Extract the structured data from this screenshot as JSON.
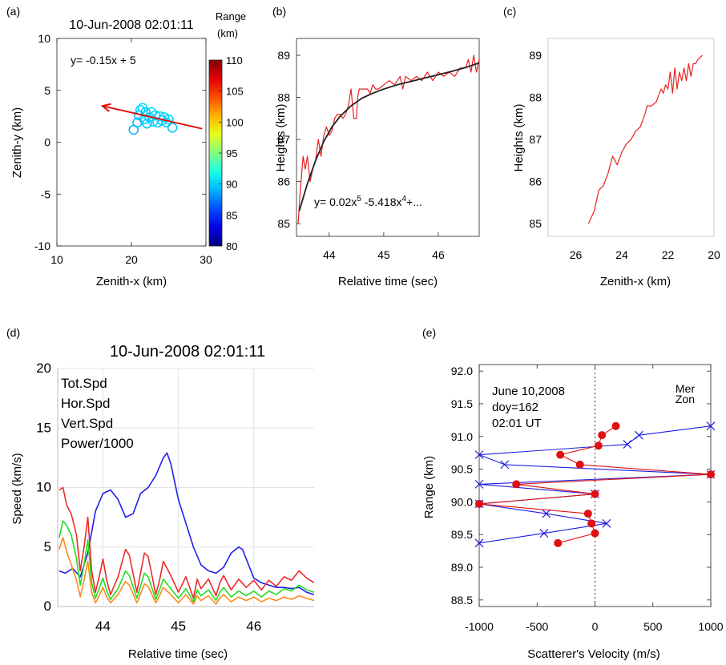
{
  "chart_data": [
    {
      "panel_label": "(a)",
      "type": "scatter",
      "title": "10-Jun-2008 02:01:11",
      "xlabel": "Zenith-x (km)",
      "ylabel": "Zenith-y (km)",
      "xlim": [
        10,
        30
      ],
      "ylim": [
        -10,
        10
      ],
      "xticks": [
        10,
        20,
        30
      ],
      "yticks": [
        -10,
        -5,
        0,
        5,
        10
      ],
      "annotation": "y= -0.15x +  5",
      "colorbar": {
        "label": "Range\n(km)",
        "min": 80,
        "max": 110,
        "ticks": [
          80,
          85,
          90,
          95,
          100,
          105,
          110
        ]
      },
      "points": [
        {
          "x": 20.3,
          "y": 1.2,
          "range": 88.8
        },
        {
          "x": 20.8,
          "y": 1.9,
          "range": 89.2
        },
        {
          "x": 21.0,
          "y": 2.6,
          "range": 89.6
        },
        {
          "x": 21.2,
          "y": 3.1,
          "range": 89.9
        },
        {
          "x": 21.5,
          "y": 3.3,
          "range": 90.1
        },
        {
          "x": 21.7,
          "y": 2.2,
          "range": 89.4
        },
        {
          "x": 21.9,
          "y": 2.9,
          "range": 89.8
        },
        {
          "x": 22.1,
          "y": 1.8,
          "range": 89.5
        },
        {
          "x": 22.4,
          "y": 2.4,
          "range": 89.7
        },
        {
          "x": 22.7,
          "y": 2.9,
          "range": 90.0
        },
        {
          "x": 22.9,
          "y": 2.0,
          "range": 89.9
        },
        {
          "x": 23.2,
          "y": 2.6,
          "range": 90.2
        },
        {
          "x": 23.5,
          "y": 1.9,
          "range": 89.8
        },
        {
          "x": 23.8,
          "y": 2.5,
          "range": 90.1
        },
        {
          "x": 24.1,
          "y": 2.1,
          "range": 89.9
        },
        {
          "x": 24.4,
          "y": 2.4,
          "range": 90.2
        },
        {
          "x": 24.7,
          "y": 1.9,
          "range": 89.7
        },
        {
          "x": 25.0,
          "y": 2.2,
          "range": 90.0
        },
        {
          "x": 25.5,
          "y": 1.4,
          "range": 89.4
        }
      ],
      "fit_arrow": {
        "from": [
          29.5,
          1.3
        ],
        "to": [
          16.1,
          3.5
        ],
        "color": "#e01010"
      }
    },
    {
      "panel_label": "(b)",
      "type": "line",
      "xlabel": "Relative time (sec)",
      "ylabel": "Heights (km)",
      "xlim": [
        43.4,
        46.75
      ],
      "ylim": [
        84.7,
        89.4
      ],
      "xticks": [
        44,
        45,
        46
      ],
      "yticks": [
        85,
        86,
        87,
        88,
        89
      ],
      "annotation": {
        "base": "y= 0.02x",
        "sup1": "5",
        "mid": " -5.418x",
        "sup2": "4",
        "tail": "+..."
      },
      "series": [
        {
          "color": "#e82020",
          "x": [
            43.43,
            43.47,
            43.52,
            43.56,
            43.6,
            43.65,
            43.7,
            43.75,
            43.8,
            43.85,
            43.9,
            43.95,
            44.0,
            44.05,
            44.1,
            44.15,
            44.2,
            44.25,
            44.3,
            44.35,
            44.4,
            44.45,
            44.5,
            44.52,
            44.55,
            44.6,
            44.7,
            44.75,
            44.8,
            44.85,
            44.9,
            45.0,
            45.1,
            45.2,
            45.3,
            45.35,
            45.4,
            45.5,
            45.6,
            45.7,
            45.8,
            45.9,
            46.0,
            46.1,
            46.2,
            46.3,
            46.4,
            46.5,
            46.55,
            46.6,
            46.65,
            46.7,
            46.75
          ],
          "y": [
            85.0,
            85.8,
            86.6,
            86.3,
            86.6,
            86.0,
            86.3,
            86.5,
            87.0,
            86.6,
            87.1,
            87.3,
            87.1,
            87.2,
            87.5,
            87.6,
            87.6,
            87.5,
            87.6,
            87.8,
            88.2,
            87.5,
            87.5,
            88.0,
            88.2,
            88.2,
            88.2,
            88.1,
            88.3,
            88.2,
            88.2,
            88.3,
            88.4,
            88.3,
            88.5,
            88.2,
            88.5,
            88.4,
            88.5,
            88.4,
            88.6,
            88.4,
            88.6,
            88.5,
            88.6,
            88.5,
            88.7,
            88.7,
            88.9,
            88.6,
            89.0,
            88.6,
            88.9
          ]
        },
        {
          "color": "#222222",
          "x": [
            43.45,
            43.6,
            43.75,
            43.9,
            44.05,
            44.2,
            44.4,
            44.6,
            44.8,
            45.0,
            45.25,
            45.5,
            45.75,
            46.0,
            46.25,
            46.5,
            46.75
          ],
          "y": [
            85.3,
            85.95,
            86.5,
            86.95,
            87.3,
            87.55,
            87.8,
            87.98,
            88.1,
            88.2,
            88.3,
            88.38,
            88.46,
            88.54,
            88.62,
            88.71,
            88.82
          ]
        }
      ]
    },
    {
      "panel_label": "(c)",
      "type": "line",
      "xlabel": "Zenith-x (km)",
      "ylabel": "Heights (km)",
      "xlim": [
        27.2,
        20.0
      ],
      "ylim": [
        84.7,
        89.4
      ],
      "xticks": [
        26,
        24,
        22,
        20
      ],
      "yticks": [
        85,
        86,
        87,
        88,
        89
      ],
      "series": [
        {
          "color": "#e82020",
          "x": [
            25.45,
            25.2,
            25.0,
            24.8,
            24.6,
            24.4,
            24.2,
            24.0,
            23.8,
            23.6,
            23.4,
            23.2,
            23.0,
            22.9,
            22.7,
            22.5,
            22.3,
            22.2,
            22.1,
            22.0,
            21.9,
            21.8,
            21.7,
            21.6,
            21.5,
            21.4,
            21.3,
            21.2,
            21.1,
            21.0,
            20.9,
            20.8,
            20.7,
            20.5
          ],
          "y": [
            85.0,
            85.3,
            85.8,
            85.9,
            86.2,
            86.6,
            86.4,
            86.7,
            86.9,
            87.0,
            87.2,
            87.3,
            87.6,
            87.8,
            87.8,
            87.9,
            88.2,
            88.1,
            88.3,
            88.2,
            88.6,
            88.1,
            88.7,
            88.2,
            88.6,
            88.4,
            88.7,
            88.4,
            88.8,
            88.5,
            88.8,
            88.8,
            88.9,
            89.0
          ]
        }
      ]
    },
    {
      "panel_label": "(d)",
      "type": "line",
      "title": "10-Jun-2008 02:01:11",
      "xlabel": "Relative time (sec)",
      "ylabel": "Speed (km/s)",
      "xlim": [
        43.4,
        46.8
      ],
      "ylim": [
        0,
        20
      ],
      "xticks": [
        44,
        45,
        46
      ],
      "yticks": [
        0,
        5,
        10,
        15,
        20
      ],
      "grid": true,
      "legend": "top-left",
      "series": [
        {
          "name": "Tot.Spd",
          "color": "#ee2a2a",
          "x": [
            43.42,
            43.47,
            43.52,
            43.58,
            43.65,
            43.7,
            43.75,
            43.8,
            43.85,
            43.9,
            43.95,
            44.0,
            44.05,
            44.1,
            44.2,
            44.3,
            44.35,
            44.45,
            44.55,
            44.6,
            44.7,
            44.75,
            44.8,
            44.9,
            45.0,
            45.1,
            45.2,
            45.25,
            45.3,
            45.4,
            45.5,
            45.55,
            45.6,
            45.7,
            45.8,
            45.9,
            46.0,
            46.1,
            46.2,
            46.3,
            46.4,
            46.5,
            46.6,
            46.7,
            46.8
          ],
          "y": [
            9.8,
            10.0,
            8.5,
            7.8,
            6.0,
            3.0,
            5.0,
            7.5,
            3.0,
            1.2,
            2.5,
            4.0,
            2.2,
            1.0,
            2.5,
            4.8,
            4.3,
            1.2,
            4.5,
            4.2,
            1.0,
            2.2,
            3.8,
            2.6,
            1.2,
            2.5,
            0.7,
            2.3,
            1.5,
            2.3,
            0.9,
            2.0,
            2.6,
            1.4,
            2.3,
            1.6,
            2.2,
            1.4,
            2.2,
            1.7,
            2.5,
            2.2,
            3.0,
            2.4,
            2.0
          ]
        },
        {
          "name": "Hor.Spd",
          "color": "#22dd22",
          "x": [
            43.42,
            43.47,
            43.52,
            43.58,
            43.65,
            43.7,
            43.75,
            43.8,
            43.85,
            43.9,
            43.95,
            44.0,
            44.05,
            44.1,
            44.2,
            44.3,
            44.35,
            44.45,
            44.55,
            44.6,
            44.7,
            44.75,
            44.8,
            44.9,
            45.0,
            45.1,
            45.2,
            45.25,
            45.3,
            45.4,
            45.5,
            45.55,
            45.6,
            45.7,
            45.8,
            45.9,
            46.0,
            46.1,
            46.2,
            46.3,
            46.4,
            46.5,
            46.6,
            46.7,
            46.8
          ],
          "y": [
            5.8,
            7.2,
            6.8,
            6.0,
            4.0,
            1.8,
            3.5,
            5.6,
            2.0,
            0.7,
            1.5,
            2.4,
            1.3,
            0.6,
            1.5,
            3.0,
            2.6,
            0.7,
            2.8,
            2.5,
            0.6,
            1.4,
            2.3,
            1.5,
            0.7,
            1.5,
            0.4,
            1.4,
            0.9,
            1.4,
            0.5,
            1.2,
            1.6,
            0.8,
            1.3,
            0.9,
            1.3,
            0.8,
            1.3,
            1.0,
            1.5,
            1.3,
            1.8,
            1.4,
            1.2
          ]
        },
        {
          "name": "Vert.Spd",
          "color": "#ff8a1a",
          "x": [
            43.42,
            43.47,
            43.52,
            43.58,
            43.65,
            43.7,
            43.75,
            43.8,
            43.85,
            43.9,
            43.95,
            44.0,
            44.05,
            44.1,
            44.2,
            44.3,
            44.35,
            44.45,
            44.55,
            44.6,
            44.7,
            44.75,
            44.8,
            44.9,
            45.0,
            45.1,
            45.2,
            45.25,
            45.3,
            45.4,
            45.5,
            45.55,
            45.6,
            45.7,
            45.8,
            45.9,
            46.0,
            46.1,
            46.2,
            46.3,
            46.4,
            46.5,
            46.6,
            46.7,
            46.8
          ],
          "y": [
            4.8,
            5.8,
            4.6,
            3.5,
            2.2,
            0.8,
            2.2,
            3.8,
            1.2,
            0.3,
            0.9,
            1.6,
            0.8,
            0.3,
            1.0,
            2.1,
            1.8,
            0.3,
            1.9,
            1.7,
            0.3,
            0.9,
            1.6,
            1.0,
            0.3,
            1.0,
            0.2,
            0.9,
            0.5,
            0.9,
            0.2,
            0.7,
            1.0,
            0.4,
            0.8,
            0.5,
            0.8,
            0.4,
            0.7,
            0.5,
            0.8,
            0.6,
            0.9,
            0.7,
            0.5
          ]
        },
        {
          "name": "Power/1000",
          "color": "#2020ee",
          "x": [
            43.42,
            43.5,
            43.6,
            43.7,
            43.8,
            43.9,
            44.0,
            44.1,
            44.2,
            44.3,
            44.4,
            44.5,
            44.6,
            44.7,
            44.8,
            44.85,
            44.9,
            45.0,
            45.1,
            45.2,
            45.3,
            45.4,
            45.5,
            45.6,
            45.7,
            45.8,
            45.85,
            45.9,
            46.0,
            46.1,
            46.2,
            46.3,
            46.4,
            46.5,
            46.6,
            46.7,
            46.8
          ],
          "y": [
            3.0,
            2.8,
            3.2,
            2.5,
            4.5,
            8.0,
            9.5,
            9.8,
            9.0,
            7.5,
            7.8,
            9.5,
            10.0,
            11.0,
            12.5,
            12.9,
            12.0,
            9.0,
            7.0,
            5.0,
            3.5,
            3.0,
            2.8,
            3.3,
            4.5,
            5.0,
            4.8,
            4.0,
            2.4,
            2.0,
            1.8,
            1.6,
            1.6,
            1.5,
            1.6,
            1.2,
            1.0
          ]
        }
      ]
    },
    {
      "panel_label": "(e)",
      "type": "line",
      "xlabel": "Scatterer's Velocity (m/s)",
      "ylabel": "Range (km)",
      "xlim": [
        -1000,
        1000
      ],
      "ylim": [
        88.4,
        92.1
      ],
      "xticks": [
        -1000,
        -500,
        0,
        500,
        1000
      ],
      "yticks": [
        88.5,
        89.0,
        89.5,
        90.0,
        90.5,
        91.0,
        91.5,
        92.0
      ],
      "legend": "top-right",
      "annotation": [
        "June 10,2008",
        "doy=162",
        "02:01 UT"
      ],
      "series": [
        {
          "name": "Mer",
          "color": "#1e1ee0",
          "marker": "x",
          "points": [
            {
              "v": 1000,
              "r": 91.16
            },
            {
              "v": 380,
              "r": 91.02
            },
            {
              "v": 280,
              "r": 90.88
            },
            {
              "v": -1000,
              "r": 90.72
            },
            {
              "v": -780,
              "r": 90.57
            },
            {
              "v": 1000,
              "r": 90.42
            },
            {
              "v": -1000,
              "r": 90.27
            },
            {
              "v": 0,
              "r": 90.12
            },
            {
              "v": -1000,
              "r": 89.97
            },
            {
              "v": -420,
              "r": 89.82
            },
            {
              "v": 100,
              "r": 89.67
            },
            {
              "v": -440,
              "r": 89.52
            },
            {
              "v": -1000,
              "r": 89.37
            }
          ]
        },
        {
          "name": "Zon",
          "color": "#e01010",
          "marker": "o",
          "points": [
            {
              "v": 180,
              "r": 91.16
            },
            {
              "v": 60,
              "r": 91.02
            },
            {
              "v": 30,
              "r": 90.86
            },
            {
              "v": -300,
              "r": 90.72
            },
            {
              "v": -130,
              "r": 90.57
            },
            {
              "v": 1000,
              "r": 90.42
            },
            {
              "v": -680,
              "r": 90.27
            },
            {
              "v": 0,
              "r": 90.12
            },
            {
              "v": -1000,
              "r": 89.97
            },
            {
              "v": -60,
              "r": 89.82
            },
            {
              "v": -30,
              "r": 89.67
            },
            {
              "v": 0,
              "r": 89.52
            },
            {
              "v": -320,
              "r": 89.37
            }
          ]
        }
      ]
    }
  ]
}
